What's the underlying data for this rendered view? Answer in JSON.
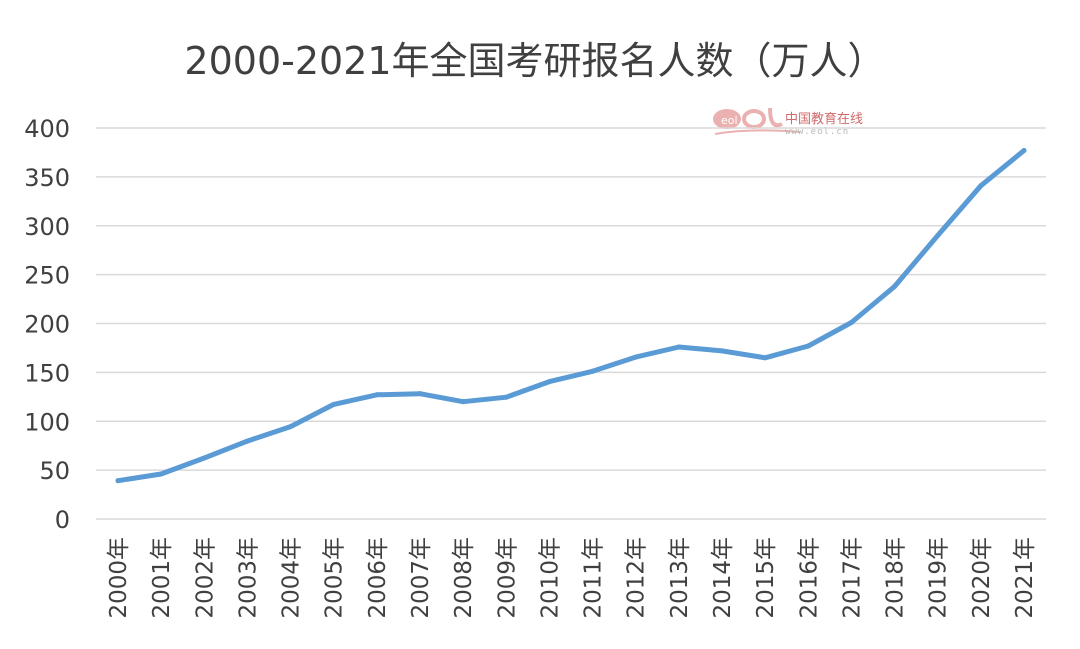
{
  "chart_data": {
    "type": "line",
    "title": "2000-2021年全国考研报名人数（万人）",
    "xlabel": "",
    "ylabel": "",
    "categories": [
      "2000年",
      "2001年",
      "2002年",
      "2003年",
      "2004年",
      "2005年",
      "2006年",
      "2007年",
      "2008年",
      "2009年",
      "2010年",
      "2011年",
      "2012年",
      "2013年",
      "2014年",
      "2015年",
      "2016年",
      "2017年",
      "2018年",
      "2019年",
      "2020年",
      "2021年"
    ],
    "series": [
      {
        "name": "考研报名人数",
        "values": [
          39.2,
          46,
          62.4,
          79.7,
          94.5,
          117.2,
          127.1,
          128.2,
          120,
          124.6,
          140.6,
          151.1,
          165.6,
          176,
          172,
          164.9,
          177,
          201,
          238,
          290,
          341,
          377
        ],
        "color": "#5b9bd5"
      }
    ],
    "yticks": [
      0,
      50,
      100,
      150,
      200,
      250,
      300,
      350,
      400
    ],
    "ylim": [
      0,
      400
    ],
    "grid": true,
    "legend": "none",
    "gridColor": "#d9d9d9",
    "textColor": "#404040"
  },
  "watermark": {
    "logo": "eol",
    "name": "中国教育在线",
    "url": "www.eol.cn"
  }
}
